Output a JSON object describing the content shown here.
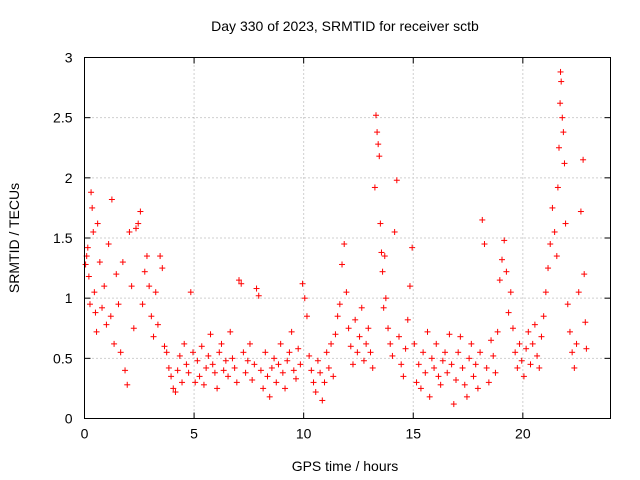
{
  "chart_data": {
    "type": "scatter",
    "title": "Day 330 of 2023, SRMTID for receiver sctb",
    "xlabel": "GPS time / hours",
    "ylabel": "SRMTID / TECUs",
    "xlim": [
      0,
      24
    ],
    "ylim": [
      0,
      3
    ],
    "grid": true,
    "marker": "+",
    "color": "#ff0000",
    "xticks": [
      0,
      5,
      10,
      15,
      20
    ],
    "xtick_labels": [
      "0",
      "5",
      "10",
      "15",
      "20"
    ],
    "yticks": [
      0,
      0.5,
      1,
      1.5,
      2,
      2.5,
      3
    ],
    "ytick_labels": [
      "0",
      "0.5",
      "1",
      "1.5",
      "2",
      "2.5",
      "3"
    ],
    "series": [
      {
        "name": "SRMTID",
        "points": [
          [
            0.05,
            1.28
          ],
          [
            0.1,
            1.35
          ],
          [
            0.15,
            1.42
          ],
          [
            0.2,
            1.18
          ],
          [
            0.25,
            0.95
          ],
          [
            0.3,
            1.88
          ],
          [
            0.35,
            1.75
          ],
          [
            0.4,
            1.55
          ],
          [
            0.45,
            1.05
          ],
          [
            0.5,
            0.88
          ],
          [
            0.55,
            0.72
          ],
          [
            0.6,
            1.62
          ],
          [
            0.7,
            1.3
          ],
          [
            0.8,
            0.92
          ],
          [
            0.9,
            1.1
          ],
          [
            1.0,
            0.78
          ],
          [
            1.1,
            1.45
          ],
          [
            1.2,
            0.85
          ],
          [
            1.25,
            1.82
          ],
          [
            1.35,
            0.62
          ],
          [
            1.45,
            1.2
          ],
          [
            1.55,
            0.95
          ],
          [
            1.65,
            0.55
          ],
          [
            1.75,
            1.3
          ],
          [
            1.85,
            0.4
          ],
          [
            1.95,
            0.28
          ],
          [
            2.05,
            1.55
          ],
          [
            2.15,
            1.1
          ],
          [
            2.25,
            0.75
          ],
          [
            2.35,
            1.58
          ],
          [
            2.45,
            1.62
          ],
          [
            2.55,
            1.72
          ],
          [
            2.65,
            0.95
          ],
          [
            2.75,
            1.22
          ],
          [
            2.85,
            1.35
          ],
          [
            2.95,
            1.1
          ],
          [
            3.05,
            0.85
          ],
          [
            3.15,
            0.68
          ],
          [
            3.25,
            1.05
          ],
          [
            3.35,
            0.78
          ],
          [
            3.45,
            1.35
          ],
          [
            3.55,
            1.25
          ],
          [
            3.65,
            0.6
          ],
          [
            3.75,
            0.55
          ],
          [
            3.85,
            0.42
          ],
          [
            3.95,
            0.35
          ],
          [
            4.05,
            0.25
          ],
          [
            4.15,
            0.22
          ],
          [
            4.25,
            0.4
          ],
          [
            4.35,
            0.52
          ],
          [
            4.45,
            0.3
          ],
          [
            4.55,
            0.62
          ],
          [
            4.65,
            0.45
          ],
          [
            4.75,
            0.38
          ],
          [
            4.85,
            1.05
          ],
          [
            4.95,
            0.55
          ],
          [
            5.05,
            0.3
          ],
          [
            5.15,
            0.48
          ],
          [
            5.25,
            0.35
          ],
          [
            5.35,
            0.6
          ],
          [
            5.45,
            0.28
          ],
          [
            5.55,
            0.42
          ],
          [
            5.65,
            0.52
          ],
          [
            5.75,
            0.7
          ],
          [
            5.85,
            0.45
          ],
          [
            5.95,
            0.38
          ],
          [
            6.05,
            0.25
          ],
          [
            6.15,
            0.55
          ],
          [
            6.25,
            0.62
          ],
          [
            6.35,
            0.4
          ],
          [
            6.45,
            0.48
          ],
          [
            6.55,
            0.35
          ],
          [
            6.65,
            0.72
          ],
          [
            6.75,
            0.5
          ],
          [
            6.85,
            0.42
          ],
          [
            6.95,
            0.3
          ],
          [
            7.05,
            1.15
          ],
          [
            7.15,
            1.12
          ],
          [
            7.25,
            0.55
          ],
          [
            7.35,
            0.38
          ],
          [
            7.45,
            0.48
          ],
          [
            7.55,
            0.62
          ],
          [
            7.65,
            0.32
          ],
          [
            7.75,
            0.45
          ],
          [
            7.85,
            1.08
          ],
          [
            7.95,
            1.02
          ],
          [
            8.05,
            0.4
          ],
          [
            8.15,
            0.25
          ],
          [
            8.25,
            0.55
          ],
          [
            8.35,
            0.35
          ],
          [
            8.45,
            0.18
          ],
          [
            8.55,
            0.42
          ],
          [
            8.65,
            0.5
          ],
          [
            8.75,
            0.3
          ],
          [
            8.85,
            0.45
          ],
          [
            8.95,
            0.62
          ],
          [
            9.05,
            0.38
          ],
          [
            9.15,
            0.25
          ],
          [
            9.25,
            0.48
          ],
          [
            9.35,
            0.55
          ],
          [
            9.45,
            0.72
          ],
          [
            9.55,
            0.4
          ],
          [
            9.65,
            0.33
          ],
          [
            9.75,
            0.58
          ],
          [
            9.85,
            0.45
          ],
          [
            9.95,
            1.12
          ],
          [
            10.05,
            1.0
          ],
          [
            10.15,
            0.85
          ],
          [
            10.25,
            0.52
          ],
          [
            10.35,
            0.4
          ],
          [
            10.45,
            0.3
          ],
          [
            10.55,
            0.22
          ],
          [
            10.65,
            0.48
          ],
          [
            10.75,
            0.38
          ],
          [
            10.85,
            0.15
          ],
          [
            10.95,
            0.3
          ],
          [
            11.05,
            0.55
          ],
          [
            11.15,
            0.42
          ],
          [
            11.25,
            0.62
          ],
          [
            11.35,
            0.35
          ],
          [
            11.45,
            0.7
          ],
          [
            11.55,
            0.85
          ],
          [
            11.65,
            0.95
          ],
          [
            11.75,
            1.28
          ],
          [
            11.85,
            1.45
          ],
          [
            11.95,
            1.05
          ],
          [
            12.05,
            0.75
          ],
          [
            12.15,
            0.6
          ],
          [
            12.25,
            0.45
          ],
          [
            12.35,
            0.82
          ],
          [
            12.45,
            0.55
          ],
          [
            12.55,
            0.68
          ],
          [
            12.65,
            0.92
          ],
          [
            12.75,
            0.48
          ],
          [
            12.85,
            0.62
          ],
          [
            12.95,
            0.75
          ],
          [
            13.05,
            0.55
          ],
          [
            13.15,
            0.42
          ],
          [
            13.25,
            1.92
          ],
          [
            13.3,
            2.52
          ],
          [
            13.35,
            2.38
          ],
          [
            13.4,
            2.28
          ],
          [
            13.45,
            2.18
          ],
          [
            13.5,
            1.62
          ],
          [
            13.55,
            1.38
          ],
          [
            13.6,
            1.22
          ],
          [
            13.65,
            0.92
          ],
          [
            13.7,
            1.35
          ],
          [
            13.75,
            1.0
          ],
          [
            13.85,
            0.75
          ],
          [
            13.95,
            0.62
          ],
          [
            14.05,
            0.52
          ],
          [
            14.15,
            1.55
          ],
          [
            14.25,
            1.98
          ],
          [
            14.35,
            0.68
          ],
          [
            14.45,
            0.45
          ],
          [
            14.55,
            0.35
          ],
          [
            14.65,
            0.58
          ],
          [
            14.75,
            0.82
          ],
          [
            14.85,
            1.1
          ],
          [
            14.95,
            1.42
          ],
          [
            15.05,
            0.62
          ],
          [
            15.15,
            0.3
          ],
          [
            15.25,
            0.45
          ],
          [
            15.35,
            0.25
          ],
          [
            15.45,
            0.55
          ],
          [
            15.55,
            0.38
          ],
          [
            15.65,
            0.72
          ],
          [
            15.75,
            0.18
          ],
          [
            15.85,
            0.5
          ],
          [
            15.95,
            0.42
          ],
          [
            16.05,
            0.62
          ],
          [
            16.15,
            0.35
          ],
          [
            16.25,
            0.28
          ],
          [
            16.35,
            0.48
          ],
          [
            16.45,
            0.55
          ],
          [
            16.55,
            0.38
          ],
          [
            16.65,
            0.7
          ],
          [
            16.75,
            0.45
          ],
          [
            16.85,
            0.12
          ],
          [
            16.95,
            0.32
          ],
          [
            17.05,
            0.55
          ],
          [
            17.15,
            0.68
          ],
          [
            17.25,
            0.42
          ],
          [
            17.35,
            0.28
          ],
          [
            17.45,
            0.18
          ],
          [
            17.55,
            0.5
          ],
          [
            17.65,
            0.62
          ],
          [
            17.75,
            0.35
          ],
          [
            17.85,
            0.45
          ],
          [
            17.95,
            0.25
          ],
          [
            18.05,
            0.55
          ],
          [
            18.15,
            1.65
          ],
          [
            18.25,
            1.45
          ],
          [
            18.35,
            0.42
          ],
          [
            18.45,
            0.3
          ],
          [
            18.55,
            0.65
          ],
          [
            18.65,
            0.52
          ],
          [
            18.75,
            0.38
          ],
          [
            18.85,
            0.72
          ],
          [
            18.95,
            1.15
          ],
          [
            19.05,
            1.32
          ],
          [
            19.15,
            1.48
          ],
          [
            19.25,
            1.22
          ],
          [
            19.35,
            0.88
          ],
          [
            19.45,
            1.05
          ],
          [
            19.55,
            0.75
          ],
          [
            19.65,
            0.55
          ],
          [
            19.75,
            0.42
          ],
          [
            19.85,
            0.62
          ],
          [
            19.95,
            0.48
          ],
          [
            20.05,
            0.35
          ],
          [
            20.15,
            0.58
          ],
          [
            20.25,
            0.72
          ],
          [
            20.35,
            0.45
          ],
          [
            20.45,
            0.62
          ],
          [
            20.55,
            0.78
          ],
          [
            20.65,
            0.52
          ],
          [
            20.75,
            0.42
          ],
          [
            20.85,
            0.68
          ],
          [
            20.95,
            0.85
          ],
          [
            21.05,
            1.05
          ],
          [
            21.15,
            1.25
          ],
          [
            21.25,
            1.45
          ],
          [
            21.35,
            1.75
          ],
          [
            21.45,
            1.55
          ],
          [
            21.55,
            1.35
          ],
          [
            21.6,
            1.92
          ],
          [
            21.65,
            2.25
          ],
          [
            21.7,
            2.62
          ],
          [
            21.72,
            2.88
          ],
          [
            21.75,
            2.8
          ],
          [
            21.8,
            2.5
          ],
          [
            21.85,
            2.38
          ],
          [
            21.9,
            2.12
          ],
          [
            21.95,
            1.62
          ],
          [
            22.05,
            0.95
          ],
          [
            22.15,
            0.72
          ],
          [
            22.25,
            0.55
          ],
          [
            22.35,
            0.42
          ],
          [
            22.45,
            0.62
          ],
          [
            22.55,
            1.05
          ],
          [
            22.65,
            1.72
          ],
          [
            22.75,
            2.15
          ],
          [
            22.8,
            1.2
          ],
          [
            22.85,
            0.8
          ],
          [
            22.9,
            0.58
          ]
        ]
      }
    ]
  }
}
